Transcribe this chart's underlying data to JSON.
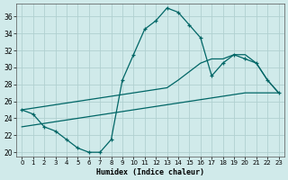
{
  "xlabel": "Humidex (Indice chaleur)",
  "xlim": [
    -0.5,
    23.5
  ],
  "ylim": [
    19.5,
    37.5
  ],
  "xticks": [
    0,
    1,
    2,
    3,
    4,
    5,
    6,
    7,
    8,
    9,
    10,
    11,
    12,
    13,
    14,
    15,
    16,
    17,
    18,
    19,
    20,
    21,
    22,
    23
  ],
  "yticks": [
    20,
    22,
    24,
    26,
    28,
    30,
    32,
    34,
    36
  ],
  "bg_color": "#d0eaea",
  "line_color": "#006666",
  "grid_color": "#b0d0d0",
  "line1_x": [
    0,
    1,
    2,
    3,
    4,
    5,
    6,
    7,
    8,
    9,
    10,
    11,
    12,
    13,
    14,
    15,
    16,
    17,
    18,
    19,
    20,
    21,
    22,
    23
  ],
  "line1_y": [
    25.0,
    24.5,
    23.0,
    22.5,
    21.5,
    20.5,
    20.0,
    20.0,
    21.5,
    28.5,
    31.5,
    34.5,
    35.5,
    37.0,
    36.5,
    35.0,
    33.5,
    29.0,
    30.5,
    31.5,
    31.0,
    30.5,
    28.5,
    27.0
  ],
  "line2_x": [
    0,
    1,
    2,
    3,
    4,
    5,
    6,
    7,
    8,
    9,
    10,
    11,
    12,
    13,
    14,
    15,
    16,
    17,
    18,
    19,
    20,
    21,
    22,
    23
  ],
  "line2_y": [
    25.0,
    25.2,
    25.4,
    25.6,
    25.8,
    26.0,
    26.2,
    26.4,
    26.6,
    26.8,
    27.0,
    27.2,
    27.4,
    27.6,
    28.5,
    29.5,
    30.5,
    31.0,
    31.0,
    31.5,
    31.5,
    30.5,
    28.5,
    27.0
  ],
  "line3_x": [
    0,
    1,
    2,
    3,
    4,
    5,
    6,
    7,
    8,
    9,
    10,
    11,
    12,
    13,
    14,
    15,
    16,
    17,
    18,
    19,
    20,
    21,
    22,
    23
  ],
  "line3_y": [
    23.0,
    23.2,
    23.4,
    23.6,
    23.8,
    24.0,
    24.2,
    24.4,
    24.6,
    24.8,
    25.0,
    25.2,
    25.4,
    25.6,
    25.8,
    26.0,
    26.2,
    26.4,
    26.6,
    26.8,
    27.0,
    27.0,
    27.0,
    27.0
  ]
}
